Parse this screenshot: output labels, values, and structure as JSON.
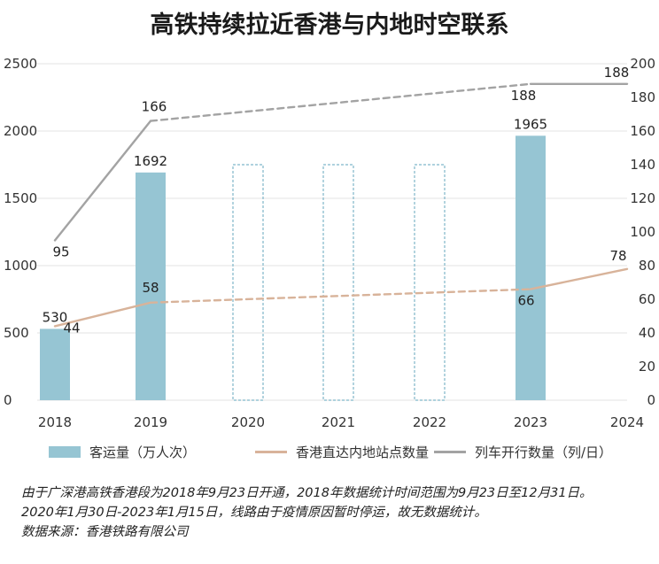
{
  "title": "高铁持续拉近香港与内地时空联系",
  "colors": {
    "bar": "#96c5d3",
    "bar_dashed_outline": "#7fb6c9",
    "stations_line": "#d8b39a",
    "trains_line": "#a3a3a3",
    "grid": "#e3e3e3"
  },
  "legend": {
    "passengers": "客运量（万人次）",
    "stations": "香港直达内地站点数量",
    "trains": "列车开行数量（列/日）"
  },
  "notes": [
    "由于广深港高铁香港段为2018年9月23日开通，2018年数据统计时间范围为9月23日至12月31日。",
    "2020年1月30日-2023年1月15日，线路由于疫情原因暂时停运，故无数据统计。",
    "数据来源：香港铁路有限公司"
  ],
  "chart_data": {
    "type": "bar",
    "categories": [
      "2018",
      "2019",
      "2020",
      "2021",
      "2022",
      "2023",
      "2024"
    ],
    "y_left": {
      "ticks": [
        "0",
        "500",
        "1000",
        "1500",
        "2000",
        "2500"
      ],
      "range": [
        0,
        2500
      ]
    },
    "y_right": {
      "ticks": [
        "0",
        "20",
        "40",
        "60",
        "80",
        "100",
        "120",
        "140",
        "160",
        "180",
        "200"
      ],
      "range": [
        0,
        200
      ]
    },
    "grid": true,
    "legend_position": "bottom",
    "series": [
      {
        "name": "客运量（万人次）",
        "kind": "bar",
        "axis": "left",
        "values": [
          530,
          1692,
          null,
          null,
          null,
          1965,
          null
        ],
        "labels": [
          "530",
          "1692",
          "",
          "",
          "",
          "1965",
          ""
        ],
        "suspended": [
          false,
          false,
          true,
          true,
          true,
          false,
          false
        ]
      },
      {
        "name": "香港直达内地站点数量",
        "kind": "line",
        "axis": "right",
        "values": [
          44,
          58,
          null,
          null,
          null,
          66,
          78
        ],
        "labels": [
          "44",
          "58",
          "",
          "",
          "",
          "66",
          "78"
        ]
      },
      {
        "name": "列车开行数量（列/日）",
        "kind": "line",
        "axis": "right",
        "values": [
          95,
          166,
          null,
          null,
          null,
          188,
          188
        ],
        "labels": [
          "95",
          "166",
          "",
          "",
          "",
          "188",
          "188"
        ]
      }
    ]
  }
}
